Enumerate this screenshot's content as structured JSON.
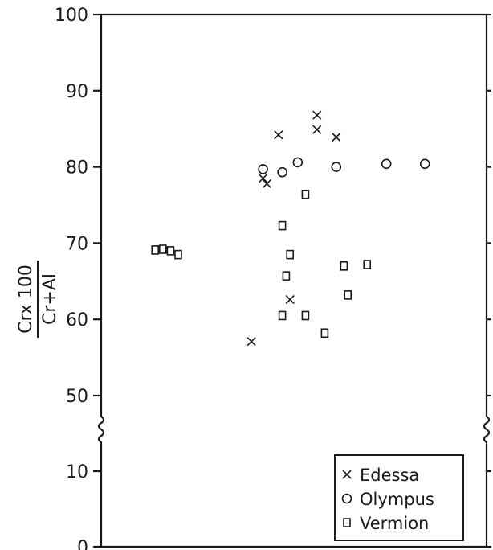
{
  "chart_data": {
    "type": "scatter",
    "title": "",
    "xlabel": "",
    "ylabel": {
      "numerator": "Crx 100",
      "denominator": "Cr+Al"
    },
    "y_ticks": [
      "0",
      "10",
      "50",
      "60",
      "70",
      "80",
      "90",
      "100"
    ],
    "y_axis_break": "between 10 and 50",
    "grid": false,
    "legend_position": "bottom-right",
    "series": [
      {
        "name": "Edessa",
        "marker": "x",
        "points": [
          {
            "x": 0.46,
            "y": 84.2
          },
          {
            "x": 0.56,
            "y": 86.8
          },
          {
            "x": 0.56,
            "y": 84.9
          },
          {
            "x": 0.61,
            "y": 83.9
          },
          {
            "x": 0.42,
            "y": 78.5
          },
          {
            "x": 0.43,
            "y": 77.8
          },
          {
            "x": 0.49,
            "y": 62.6
          },
          {
            "x": 0.39,
            "y": 57.1
          }
        ]
      },
      {
        "name": "Olympus",
        "marker": "o",
        "points": [
          {
            "x": 0.42,
            "y": 79.7
          },
          {
            "x": 0.47,
            "y": 79.3
          },
          {
            "x": 0.51,
            "y": 80.6
          },
          {
            "x": 0.61,
            "y": 80.0
          },
          {
            "x": 0.74,
            "y": 80.4
          },
          {
            "x": 0.84,
            "y": 80.4
          }
        ]
      },
      {
        "name": "Vermion",
        "marker": "square",
        "points": [
          {
            "x": 0.53,
            "y": 76.4
          },
          {
            "x": 0.47,
            "y": 72.3
          },
          {
            "x": 0.49,
            "y": 68.5
          },
          {
            "x": 0.48,
            "y": 65.7
          },
          {
            "x": 0.47,
            "y": 60.5
          },
          {
            "x": 0.53,
            "y": 60.5
          },
          {
            "x": 0.58,
            "y": 58.2
          },
          {
            "x": 0.63,
            "y": 67.0
          },
          {
            "x": 0.69,
            "y": 67.2
          },
          {
            "x": 0.64,
            "y": 63.2
          },
          {
            "x": 0.14,
            "y": 69.1
          },
          {
            "x": 0.16,
            "y": 69.2
          },
          {
            "x": 0.18,
            "y": 69.0
          },
          {
            "x": 0.2,
            "y": 68.5
          }
        ]
      }
    ]
  }
}
